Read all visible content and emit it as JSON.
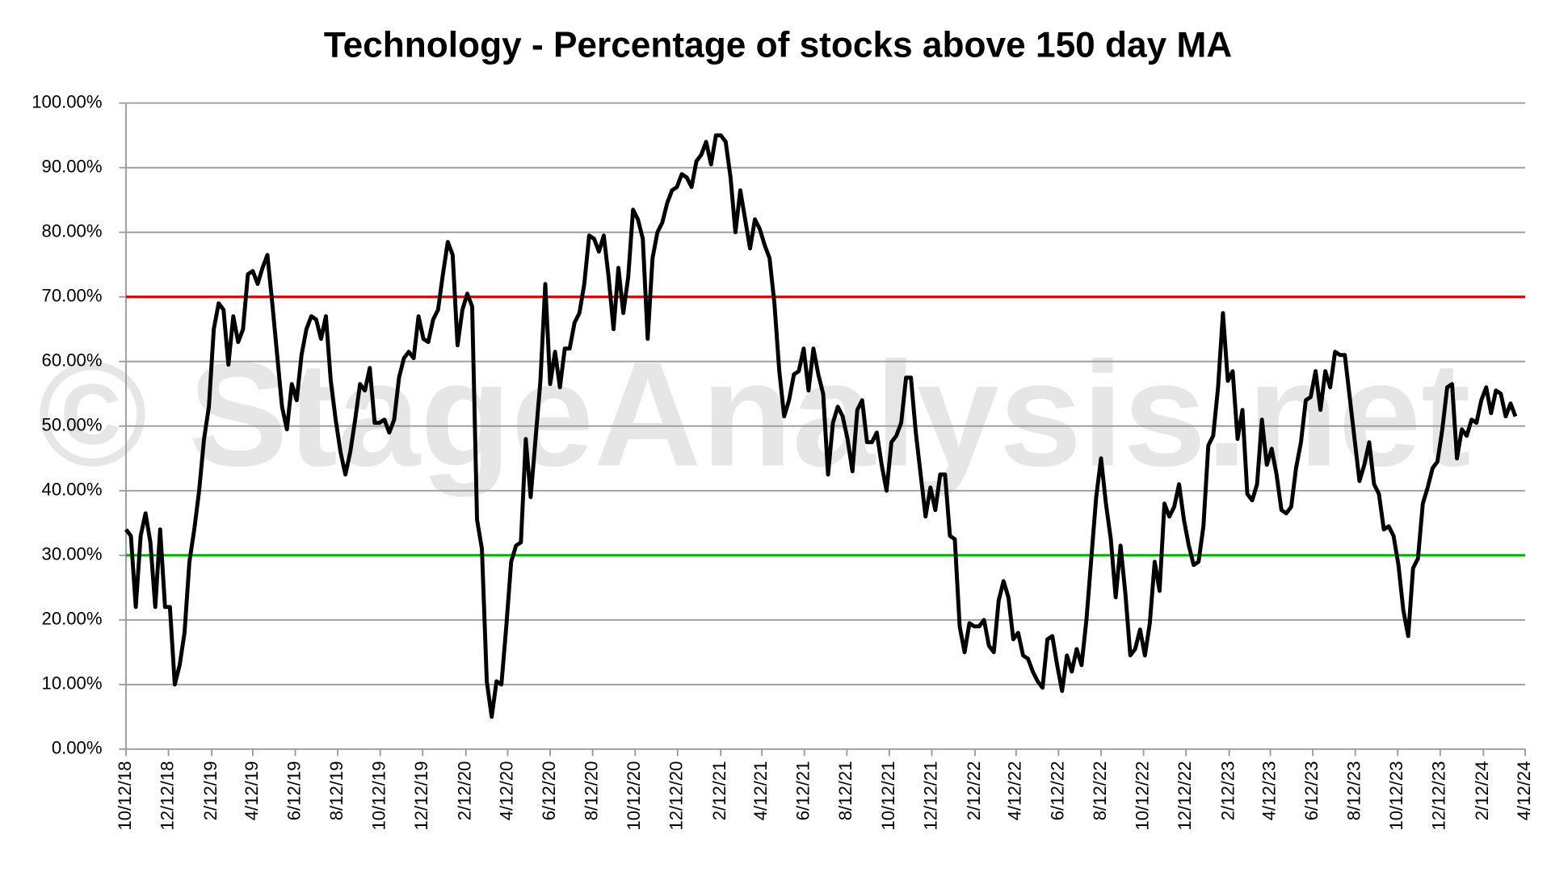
{
  "chart_data": {
    "type": "line",
    "title": "Technology - Percentage of stocks above 150 day MA",
    "watermark": "© StageAnalysis.net",
    "x": [
      "10/12/18",
      "10/19/18",
      "10/26/18",
      "11/2/18",
      "11/9/18",
      "11/16/18",
      "11/23/18",
      "11/30/18",
      "12/7/18",
      "12/14/18",
      "12/21/18",
      "12/28/18",
      "1/4/19",
      "1/11/19",
      "1/18/19",
      "1/25/19",
      "2/1/19",
      "2/8/19",
      "2/15/19",
      "2/22/19",
      "3/1/19",
      "3/8/19",
      "3/15/19",
      "3/22/19",
      "3/29/19",
      "4/5/19",
      "4/12/19",
      "4/19/19",
      "4/26/19",
      "5/3/19",
      "5/10/19",
      "5/17/19",
      "5/24/19",
      "5/31/19",
      "6/7/19",
      "6/14/19",
      "6/21/19",
      "6/28/19",
      "7/5/19",
      "7/12/19",
      "7/19/19",
      "7/26/19",
      "8/2/19",
      "8/9/19",
      "8/16/19",
      "8/23/19",
      "8/30/19",
      "9/6/19",
      "9/13/19",
      "9/20/19",
      "9/27/19",
      "10/4/19",
      "10/11/19",
      "10/18/19",
      "10/25/19",
      "11/1/19",
      "11/8/19",
      "11/15/19",
      "11/22/19",
      "11/29/19",
      "12/6/19",
      "12/13/19",
      "12/20/19",
      "12/27/19",
      "1/3/20",
      "1/10/20",
      "1/17/20",
      "1/24/20",
      "1/31/20",
      "2/7/20",
      "2/14/20",
      "2/21/20",
      "2/28/20",
      "3/6/20",
      "3/13/20",
      "3/20/20",
      "3/27/20",
      "4/3/20",
      "4/10/20",
      "4/17/20",
      "4/24/20",
      "5/1/20",
      "5/8/20",
      "5/15/20",
      "5/22/20",
      "5/29/20",
      "6/5/20",
      "6/12/20",
      "6/19/20",
      "6/26/20",
      "7/3/20",
      "7/10/20",
      "7/17/20",
      "7/24/20",
      "7/31/20",
      "8/7/20",
      "8/14/20",
      "8/21/20",
      "8/28/20",
      "9/4/20",
      "9/11/20",
      "9/18/20",
      "9/25/20",
      "10/2/20",
      "10/9/20",
      "10/16/20",
      "10/23/20",
      "10/30/20",
      "11/6/20",
      "11/13/20",
      "11/20/20",
      "11/27/20",
      "12/4/20",
      "12/11/20",
      "12/18/20",
      "12/25/20",
      "1/1/21",
      "1/8/21",
      "1/15/21",
      "1/22/21",
      "1/29/21",
      "2/5/21",
      "2/12/21",
      "2/19/21",
      "2/26/21",
      "3/5/21",
      "3/12/21",
      "3/19/21",
      "3/26/21",
      "4/2/21",
      "4/9/21",
      "4/16/21",
      "4/23/21",
      "4/30/21",
      "5/7/21",
      "5/14/21",
      "5/21/21",
      "5/28/21",
      "6/4/21",
      "6/11/21",
      "6/18/21",
      "6/25/21",
      "7/2/21",
      "7/9/21",
      "7/16/21",
      "7/23/21",
      "7/30/21",
      "8/6/21",
      "8/13/21",
      "8/20/21",
      "8/27/21",
      "9/3/21",
      "9/10/21",
      "9/17/21",
      "9/24/21",
      "10/1/21",
      "10/8/21",
      "10/15/21",
      "10/22/21",
      "10/29/21",
      "11/5/21",
      "11/12/21",
      "11/19/21",
      "11/26/21",
      "12/3/21",
      "12/10/21",
      "12/17/21",
      "12/24/21",
      "12/31/21",
      "1/7/22",
      "1/14/22",
      "1/21/22",
      "1/28/22",
      "2/4/22",
      "2/11/22",
      "2/18/22",
      "2/25/22",
      "3/4/22",
      "3/11/22",
      "3/18/22",
      "3/25/22",
      "4/1/22",
      "4/8/22",
      "4/15/22",
      "4/22/22",
      "4/29/22",
      "5/6/22",
      "5/13/22",
      "5/20/22",
      "5/27/22",
      "6/3/22",
      "6/10/22",
      "6/17/22",
      "6/24/22",
      "7/1/22",
      "7/8/22",
      "7/15/22",
      "7/22/22",
      "7/29/22",
      "8/5/22",
      "8/12/22",
      "8/19/22",
      "8/26/22",
      "9/2/22",
      "9/9/22",
      "9/16/22",
      "9/23/22",
      "9/30/22",
      "10/7/22",
      "10/14/22",
      "10/21/22",
      "10/28/22",
      "11/4/22",
      "11/11/22",
      "11/18/22",
      "11/25/22",
      "12/2/22",
      "12/9/22",
      "12/16/22",
      "12/23/22",
      "12/30/22",
      "1/6/23",
      "1/13/23",
      "1/20/23",
      "1/27/23",
      "2/3/23",
      "2/10/23",
      "2/17/23",
      "2/24/23",
      "3/3/23",
      "3/10/23",
      "3/17/23",
      "3/24/23",
      "3/31/23",
      "4/7/23",
      "4/14/23",
      "4/21/23",
      "4/28/23",
      "5/5/23",
      "5/12/23",
      "5/19/23",
      "5/26/23",
      "6/2/23",
      "6/9/23",
      "6/16/23",
      "6/23/23",
      "6/30/23",
      "7/7/23",
      "7/14/23",
      "7/21/23",
      "7/28/23",
      "8/4/23",
      "8/11/23",
      "8/18/23",
      "8/25/23",
      "9/1/23",
      "9/8/23",
      "9/15/23",
      "9/22/23",
      "9/29/23",
      "10/6/23",
      "10/13/23",
      "10/20/23",
      "10/27/23",
      "11/3/23",
      "11/10/23",
      "11/17/23",
      "11/24/23",
      "12/1/23",
      "12/8/23",
      "12/15/23",
      "12/22/23",
      "12/29/23",
      "1/5/24",
      "1/12/24",
      "1/19/24",
      "1/26/24",
      "2/2/24",
      "2/9/24",
      "2/16/24",
      "2/23/24",
      "3/1/24",
      "3/8/24",
      "3/15/24",
      "3/22/24",
      "3/29/24"
    ],
    "values": [
      34,
      33,
      22,
      33,
      36.5,
      32,
      22,
      34,
      22,
      22,
      10,
      13,
      18,
      29,
      34,
      40,
      48,
      53,
      65,
      69,
      68,
      59.5,
      67,
      63,
      65,
      73.5,
      74,
      72,
      74.5,
      76.5,
      69,
      61,
      53,
      49.5,
      56.5,
      54,
      61,
      65,
      67,
      66.5,
      63.5,
      67,
      57,
      51,
      46,
      42.5,
      46,
      51,
      56.5,
      55.5,
      59,
      50.5,
      50.5,
      51,
      49,
      51,
      57.5,
      60.5,
      61.5,
      60.5,
      67,
      63.5,
      63,
      66.5,
      68,
      73.5,
      78.5,
      76.5,
      62.5,
      68,
      70.5,
      68.5,
      35.5,
      31,
      10.5,
      5,
      10.5,
      10,
      19,
      29,
      31.5,
      32,
      48,
      39,
      48,
      57,
      72,
      56.5,
      61.5,
      56,
      62,
      62,
      66,
      67.5,
      72,
      79.5,
      79,
      77,
      79.5,
      73,
      65,
      74.5,
      67.5,
      73,
      83.5,
      82,
      79,
      63.5,
      76,
      80,
      81.5,
      84.5,
      86.5,
      87,
      89,
      88.5,
      87,
      91,
      92,
      94,
      90.5,
      95,
      95,
      94,
      88.5,
      80,
      86.5,
      82,
      77.5,
      82,
      80.5,
      78,
      76,
      69,
      58.5,
      51.5,
      54,
      58,
      58.5,
      62,
      55.5,
      62,
      58,
      55,
      42.5,
      50.5,
      53,
      51.5,
      48,
      43,
      52.5,
      54,
      47.5,
      47.5,
      49,
      44,
      40,
      47.5,
      48.5,
      50.5,
      57.5,
      57.5,
      49,
      42.5,
      36,
      40.5,
      37,
      42.5,
      42.5,
      33,
      32.5,
      19,
      15,
      19.5,
      19,
      19,
      20,
      16,
      15,
      23,
      26,
      23.5,
      17,
      18,
      14.5,
      14,
      12,
      10.5,
      9.5,
      17,
      17.5,
      13,
      9,
      14.5,
      12,
      15.5,
      13,
      20,
      29.5,
      39,
      45,
      38,
      32.5,
      23.5,
      31.5,
      24,
      14.5,
      15.5,
      18.5,
      14.5,
      19.5,
      29,
      24.5,
      38,
      36,
      37.5,
      41,
      35.5,
      31.5,
      28.5,
      29,
      34.5,
      47,
      48.5,
      56,
      67.5,
      57,
      58.5,
      48,
      52.5,
      39.5,
      38.5,
      41,
      51,
      44,
      46.5,
      42.5,
      37,
      36.5,
      37.5,
      43.5,
      47.5,
      54,
      54.5,
      58.5,
      52.5,
      58.5,
      56,
      61.5,
      61,
      61,
      54.5,
      48,
      41.5,
      44,
      47.5,
      41,
      39.5,
      34,
      34.5,
      33,
      28.5,
      21.5,
      17.5,
      28,
      29.5,
      38,
      40.5,
      43.5,
      44.5,
      49.5,
      56,
      56.5,
      45,
      49.5,
      48.5,
      51,
      50.5,
      54,
      56,
      52,
      55.5,
      55,
      51.5,
      53.5,
      51.5
    ],
    "color": "#000000",
    "xlim": [
      "10/12/18",
      "4/12/24"
    ],
    "xticks": [
      "10/12/18",
      "12/12/18",
      "2/12/19",
      "4/12/19",
      "6/12/19",
      "8/12/19",
      "10/12/19",
      "12/12/19",
      "2/12/20",
      "4/12/20",
      "6/12/20",
      "8/12/20",
      "10/12/20",
      "12/12/20",
      "2/12/21",
      "4/12/21",
      "6/12/21",
      "8/12/21",
      "10/12/21",
      "12/12/21",
      "2/12/22",
      "4/12/22",
      "6/12/22",
      "8/12/22",
      "10/12/22",
      "12/12/22",
      "2/12/23",
      "4/12/23",
      "6/12/23",
      "8/12/23",
      "10/12/23",
      "12/12/23",
      "2/12/24",
      "4/12/24"
    ],
    "ylim": [
      0,
      100
    ],
    "yticks": [
      {
        "value": 0,
        "label": "0.00%"
      },
      {
        "value": 10,
        "label": "10.00%"
      },
      {
        "value": 20,
        "label": "20.00%"
      },
      {
        "value": 30,
        "label": "30.00%"
      },
      {
        "value": 40,
        "label": "40.00%"
      },
      {
        "value": 50,
        "label": "50.00%"
      },
      {
        "value": 60,
        "label": "60.00%"
      },
      {
        "value": 70,
        "label": "70.00%"
      },
      {
        "value": 80,
        "label": "80.00%"
      },
      {
        "value": 90,
        "label": "90.00%"
      },
      {
        "value": 100,
        "label": "100.00%"
      }
    ],
    "grid": true,
    "reference_lines": [
      {
        "value": 70,
        "color": "#e00000"
      },
      {
        "value": 30,
        "color": "#00b400"
      }
    ]
  }
}
